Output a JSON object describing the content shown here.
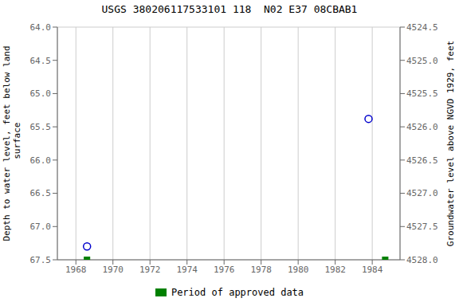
{
  "chart_data": {
    "type": "scatter",
    "title": "USGS 380206117533101 118  N02 E37 08CBAB1",
    "y_label": "Depth to water level, feet below land\n surface",
    "y2_label": "Groundwater level above NGVD 1929, feet",
    "xlim": [
      1967.0,
      1985.5
    ],
    "xticks": [
      1968,
      1970,
      1972,
      1974,
      1976,
      1978,
      1980,
      1982,
      1984
    ],
    "ylim": [
      67.5,
      64.0
    ],
    "yticks": [
      {
        "value": 64.0,
        "label": "64.0"
      },
      {
        "value": 64.5,
        "label": "64.5"
      },
      {
        "value": 65.0,
        "label": "65.0"
      },
      {
        "value": 65.5,
        "label": "65.5"
      },
      {
        "value": 66.0,
        "label": "66.0"
      },
      {
        "value": 66.5,
        "label": "66.5"
      },
      {
        "value": 67.0,
        "label": "67.0"
      },
      {
        "value": 67.5,
        "label": "67.5"
      }
    ],
    "y2lim": [
      4528.0,
      4524.5
    ],
    "y2ticks": [
      {
        "value": 4524.5,
        "label": "4524.5"
      },
      {
        "value": 4525.0,
        "label": "4525.0"
      },
      {
        "value": 4525.5,
        "label": "4525.5"
      },
      {
        "value": 4526.0,
        "label": "4526.0"
      },
      {
        "value": 4526.5,
        "label": "4526.5"
      },
      {
        "value": 4527.0,
        "label": "4527.0"
      },
      {
        "value": 4527.5,
        "label": "4527.5"
      },
      {
        "value": 4528.0,
        "label": "4528.0"
      }
    ],
    "grid": true,
    "legend": "bottom",
    "series": [
      {
        "marker": "open_circle",
        "color": "#0000cc",
        "x": [
          1968.6,
          1983.8
        ],
        "values": [
          67.3,
          65.38
        ]
      },
      {
        "name": "Period of approved data",
        "marker": "square",
        "color": "#008000",
        "x": [
          1968.6,
          1984.7
        ],
        "values": [
          67.5,
          67.5
        ]
      }
    ]
  }
}
